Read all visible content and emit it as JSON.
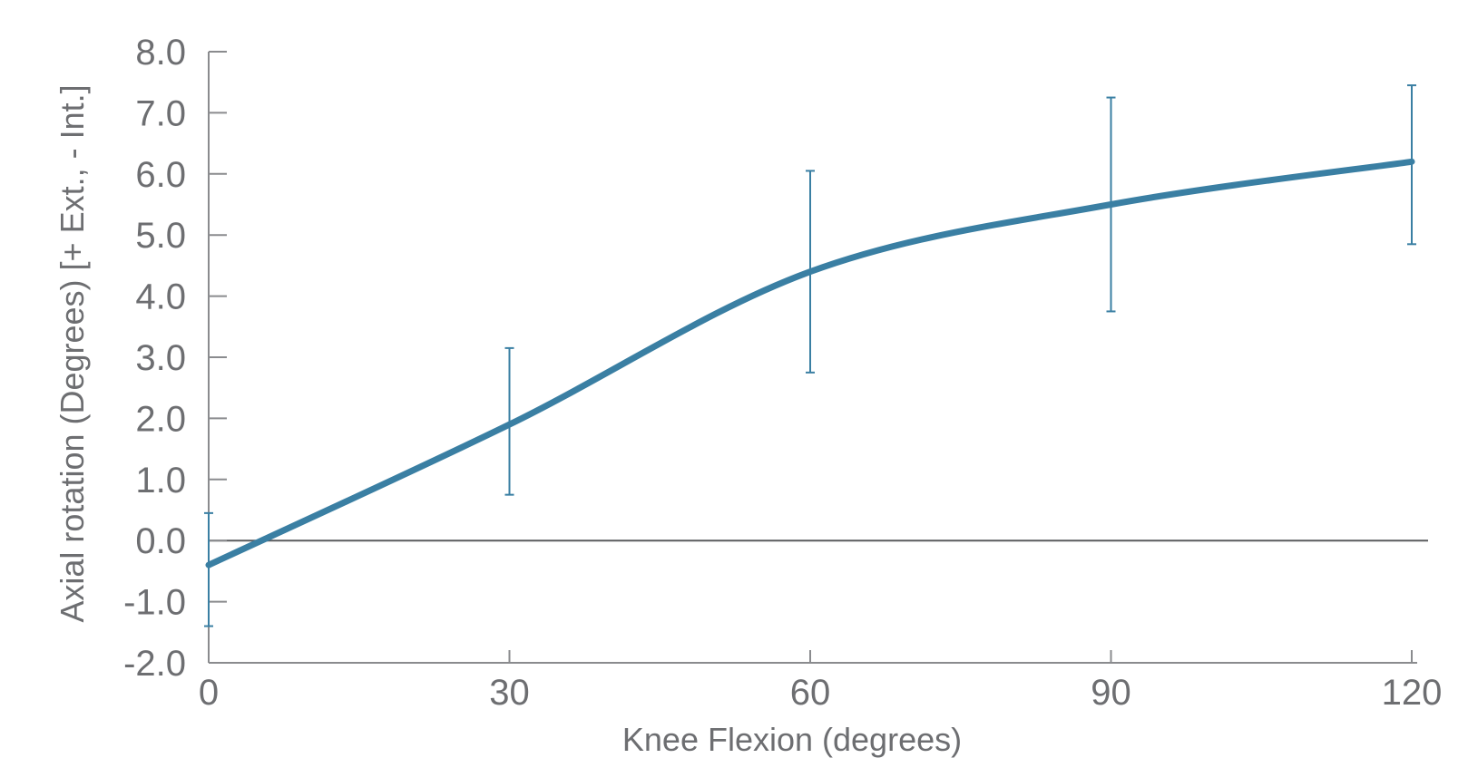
{
  "chart_data": {
    "type": "line",
    "title": "",
    "xlabel": "Knee Flexion (degrees)",
    "ylabel": "Axial rotation (Degrees) [+ Ext., - Int.]",
    "xlim": [
      0,
      120
    ],
    "ylim": [
      -2.0,
      8.0
    ],
    "x_ticks": [
      0,
      30,
      60,
      90,
      120
    ],
    "x_tick_labels": [
      "0",
      "30",
      "60",
      "90",
      "120"
    ],
    "y_ticks": [
      -2.0,
      -1.0,
      0.0,
      1.0,
      2.0,
      3.0,
      4.0,
      5.0,
      6.0,
      7.0,
      8.0
    ],
    "y_tick_labels": [
      "-2.0",
      "-1.0",
      "0.0",
      "1.0",
      "2.0",
      "3.0",
      "4.0",
      "5.0",
      "6.0",
      "7.0",
      "8.0"
    ],
    "grid": false,
    "legend": "none",
    "zero_line": true,
    "series": [
      {
        "x": [
          0,
          30,
          60,
          90,
          120
        ],
        "values": [
          -0.4,
          1.9,
          4.4,
          5.5,
          6.2
        ],
        "error_low": [
          -1.4,
          0.75,
          2.75,
          3.75,
          4.85
        ],
        "error_high": [
          0.45,
          3.15,
          6.05,
          7.25,
          7.45
        ],
        "color": "#3a7fa3"
      }
    ]
  }
}
